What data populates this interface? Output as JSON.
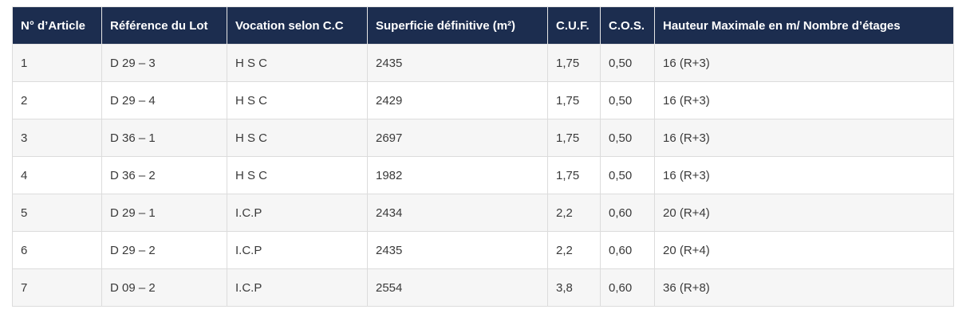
{
  "table": {
    "header": [
      "N° d’Article",
      "Référence du Lot",
      "Vocation selon C.C",
      "Superficie définitive (m²)",
      "C.U.F.",
      "C.O.S.",
      "Hauteur Maximale en m/ Nombre d’étages"
    ],
    "rows": [
      [
        "1",
        "D 29 – 3",
        "H S C",
        "2435",
        "1,75",
        "0,50",
        "16 (R+3)"
      ],
      [
        "2",
        "D 29 – 4",
        "H S C",
        "2429",
        "1,75",
        "0,50",
        "16 (R+3)"
      ],
      [
        "3",
        "D 36 – 1",
        "H S C",
        "2697",
        "1,75",
        "0,50",
        "16 (R+3)"
      ],
      [
        "4",
        "D 36 – 2",
        "H S C",
        "1982",
        "1,75",
        "0,50",
        "16 (R+3)"
      ],
      [
        "5",
        "D 29 – 1",
        "I.C.P",
        "2434",
        "2,2",
        "0,60",
        "20 (R+4)"
      ],
      [
        "6",
        "D 29 – 2",
        "I.C.P",
        "2435",
        "2,2",
        "0,60",
        "20 (R+4)"
      ],
      [
        "7",
        "D 09 – 2",
        "I.C.P",
        "2554",
        "3,8",
        "0,60",
        "36 (R+8)"
      ]
    ]
  }
}
